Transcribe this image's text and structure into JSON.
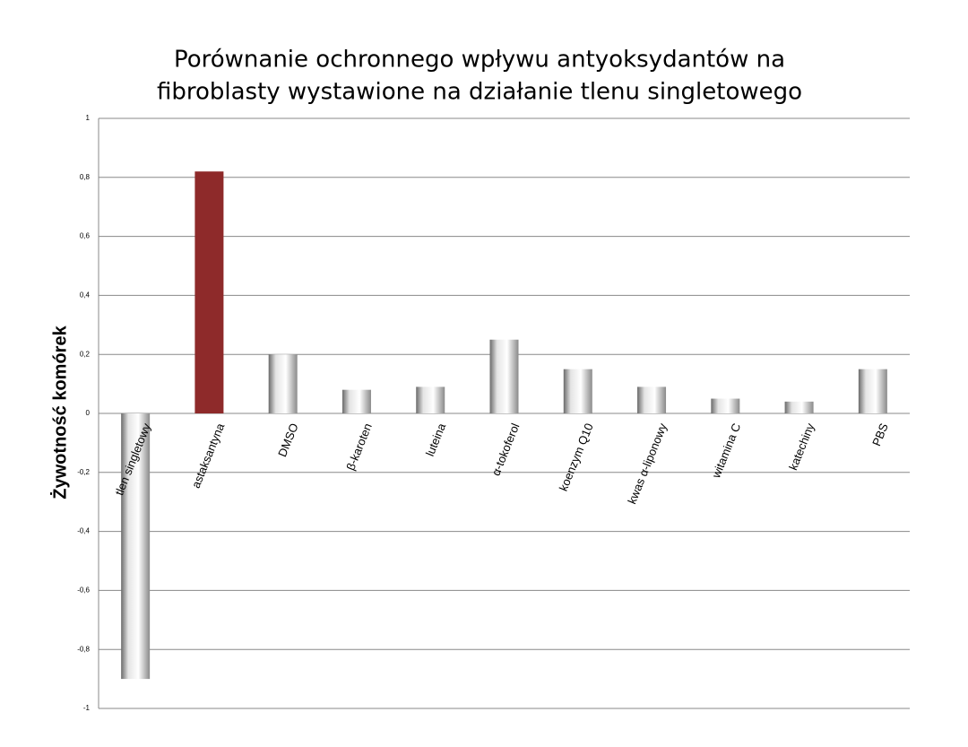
{
  "chart_data": {
    "type": "bar",
    "title": [
      "Porównanie ochronnego wpływu antyoksydantów na",
      "fibroblasty wystawione na działanie tlenu singletowego"
    ],
    "y_label": "Żywotność komórek",
    "categories": [
      "tlen singletowy",
      "astaksantyna",
      "DMSO",
      "β-karoten",
      "luteina",
      "α-tokoferol",
      "koenzym Q10",
      "kwas α-liponowy",
      "witamina C",
      "katechiny",
      "PBS"
    ],
    "values": [
      -0.9,
      0.82,
      0.2,
      0.08,
      0.09,
      0.25,
      0.15,
      0.09,
      0.05,
      0.04,
      0.15
    ],
    "colors": [
      "#9a9a9a",
      "#8e2a2a",
      "#9a9a9a",
      "#9a9a9a",
      "#9a9a9a",
      "#9a9a9a",
      "#9a9a9a",
      "#9a9a9a",
      "#9a9a9a",
      "#9a9a9a",
      "#9a9a9a"
    ],
    "ylim": [
      -1,
      1
    ],
    "yticks": [
      -1,
      {
        "value": -0.8,
        "label": "-0,8"
      },
      {
        "value": -0.6,
        "label": "-0,6"
      },
      {
        "value": -0.4,
        "label": "-0,4"
      },
      {
        "value": -0.2,
        "label": "-0,2"
      },
      0,
      {
        "value": 0.2,
        "label": "0,2"
      },
      {
        "value": 0.4,
        "label": "0,4"
      },
      {
        "value": 0.6,
        "label": "0,6"
      },
      {
        "value": 0.8,
        "label": "0,8"
      },
      1
    ],
    "grid": true
  }
}
